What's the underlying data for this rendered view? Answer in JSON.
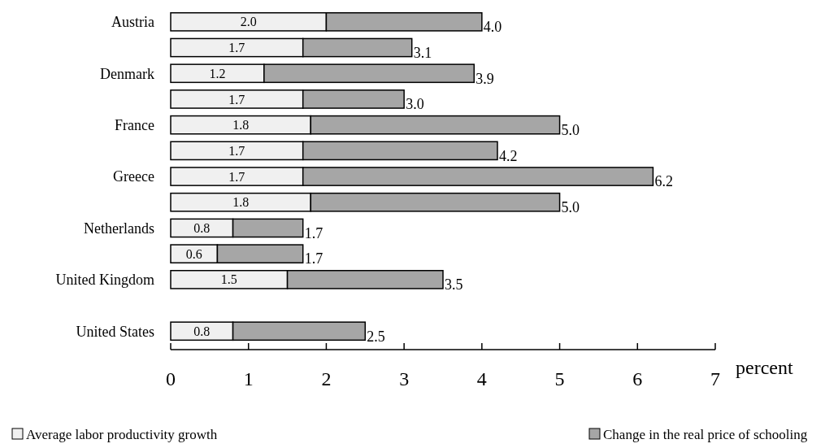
{
  "chart_data": {
    "type": "bar",
    "orientation": "horizontal",
    "stacked": true,
    "categories": [
      "Austria",
      null,
      "Denmark",
      null,
      "France",
      null,
      "Greece",
      null,
      "Netherlands",
      null,
      "United Kingdom",
      null,
      "United States"
    ],
    "series": [
      {
        "name": "Average labor productivity growth",
        "color": "#f0f0f0",
        "values": [
          2.0,
          1.7,
          1.2,
          1.7,
          1.8,
          1.7,
          1.7,
          1.8,
          0.8,
          0.6,
          1.5,
          null,
          0.8
        ],
        "value_labels": [
          "2.0",
          "1.7",
          "1.2",
          "1.7",
          "1.8",
          "1.7",
          "1.7",
          "1.8",
          "0.8",
          "0.6",
          "1.5",
          null,
          "0.8"
        ]
      },
      {
        "name": "Change in the real price of schooling",
        "color": "#a6a6a6",
        "values": [
          2.0,
          1.4,
          2.7,
          1.3,
          3.2,
          2.5,
          4.5,
          3.2,
          0.9,
          1.1,
          2.0,
          null,
          1.7
        ]
      }
    ],
    "totals": [
      "4.0",
      "3.1",
      "3.9",
      "3.0",
      "5.0",
      "4.2",
      "6.2",
      "5.0",
      "1.7",
      "1.7",
      "3.5",
      null,
      "2.5"
    ],
    "xlim": [
      0,
      7
    ],
    "xticks": [
      0,
      1,
      2,
      3,
      4,
      5,
      6,
      7
    ],
    "xlabel": "percent",
    "legend": "bottom"
  }
}
